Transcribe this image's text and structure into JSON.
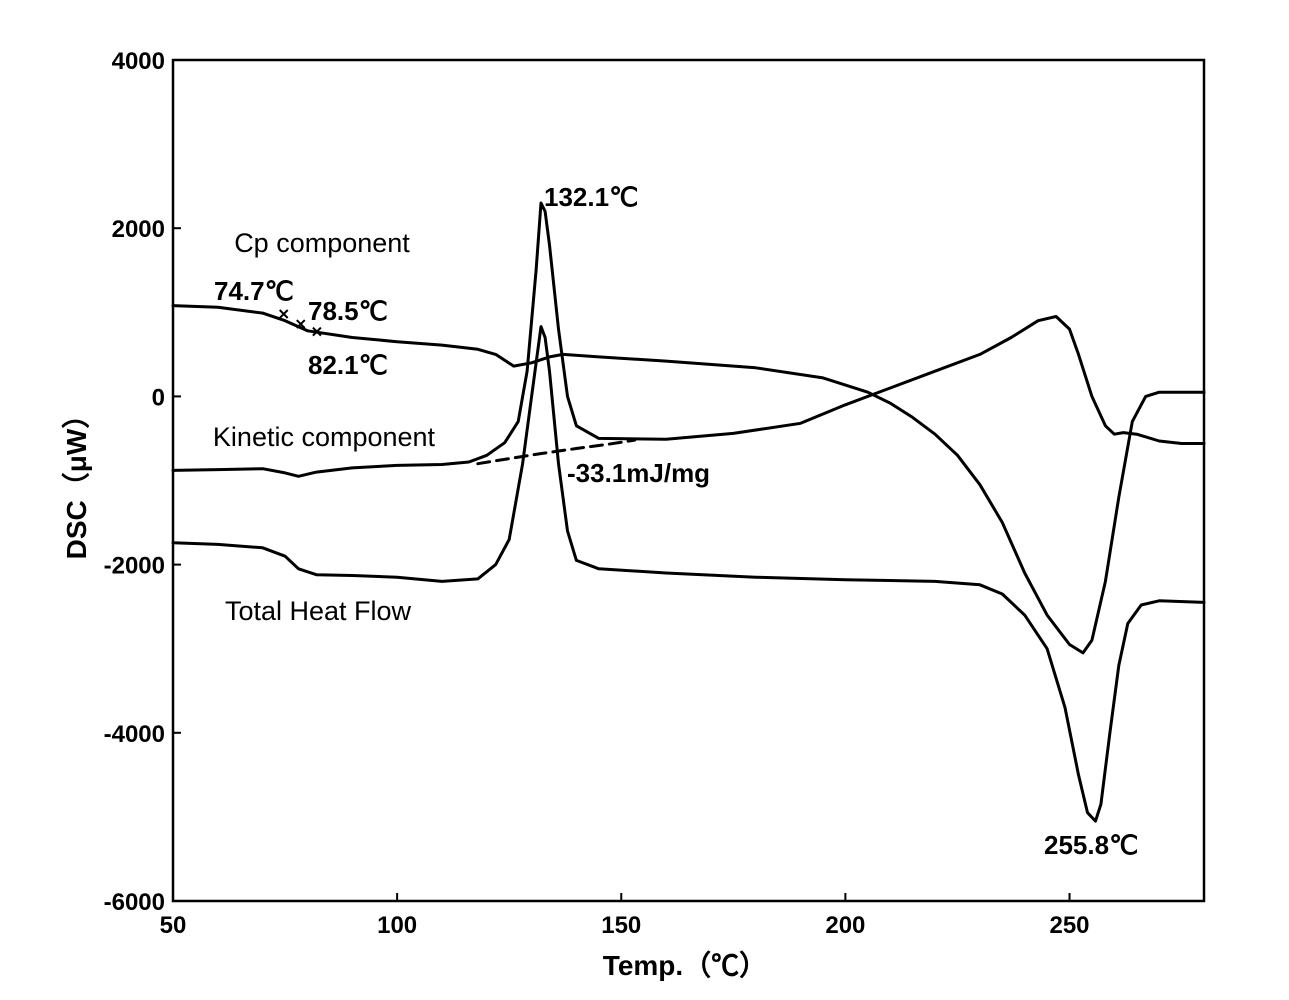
{
  "chart_data": {
    "type": "line",
    "title": "",
    "xlabel": "Temp.（℃）",
    "ylabel": "DSC（μW）",
    "xlim": [
      50,
      280
    ],
    "ylim": [
      -6000,
      4000
    ],
    "x_ticks": [
      50,
      100,
      150,
      200,
      250
    ],
    "x_tick_labels": [
      "50",
      "100",
      "150",
      "200",
      "250"
    ],
    "y_ticks": [
      4000,
      2000,
      0,
      -2000,
      -4000,
      -6000
    ],
    "y_tick_labels": [
      "4000",
      "2000",
      "0",
      "-2000",
      "-4000",
      "-6000"
    ],
    "grid": false,
    "legend": "none",
    "series": [
      {
        "name": "Cp component",
        "color": "#000000",
        "style": "solid",
        "points": [
          [
            50,
            1080
          ],
          [
            60,
            1060
          ],
          [
            70,
            990
          ],
          [
            75,
            900
          ],
          [
            80,
            780
          ],
          [
            90,
            700
          ],
          [
            100,
            650
          ],
          [
            110,
            610
          ],
          [
            118,
            560
          ],
          [
            122,
            500
          ],
          [
            126,
            360
          ],
          [
            130,
            400
          ],
          [
            134,
            470
          ],
          [
            137,
            500
          ],
          [
            145,
            470
          ],
          [
            160,
            420
          ],
          [
            180,
            340
          ],
          [
            195,
            220
          ],
          [
            205,
            50
          ],
          [
            210,
            -80
          ],
          [
            215,
            -250
          ],
          [
            220,
            -450
          ],
          [
            225,
            -700
          ],
          [
            230,
            -1050
          ],
          [
            235,
            -1500
          ],
          [
            240,
            -2100
          ],
          [
            245,
            -2600
          ],
          [
            250,
            -2950
          ],
          [
            253,
            -3050
          ],
          [
            255,
            -2900
          ],
          [
            258,
            -2200
          ],
          [
            261,
            -1200
          ],
          [
            264,
            -300
          ],
          [
            267,
            0
          ],
          [
            270,
            50
          ],
          [
            280,
            50
          ]
        ]
      },
      {
        "name": "Kinetic component",
        "color": "#000000",
        "style": "solid",
        "points": [
          [
            50,
            -880
          ],
          [
            60,
            -870
          ],
          [
            70,
            -860
          ],
          [
            75,
            -910
          ],
          [
            78,
            -950
          ],
          [
            82,
            -900
          ],
          [
            90,
            -850
          ],
          [
            100,
            -820
          ],
          [
            110,
            -810
          ],
          [
            116,
            -780
          ],
          [
            120,
            -700
          ],
          [
            124,
            -550
          ],
          [
            127,
            -300
          ],
          [
            129,
            300
          ],
          [
            131,
            1500
          ],
          [
            132.1,
            2300
          ],
          [
            133,
            2200
          ],
          [
            134,
            1800
          ],
          [
            136,
            800
          ],
          [
            138,
            0
          ],
          [
            140,
            -350
          ],
          [
            145,
            -500
          ],
          [
            160,
            -510
          ],
          [
            175,
            -440
          ],
          [
            190,
            -320
          ],
          [
            200,
            -100
          ],
          [
            210,
            100
          ],
          [
            220,
            300
          ],
          [
            230,
            500
          ],
          [
            237,
            700
          ],
          [
            243,
            900
          ],
          [
            247,
            950
          ],
          [
            250,
            800
          ],
          [
            252,
            500
          ],
          [
            255,
            0
          ],
          [
            258,
            -350
          ],
          [
            260,
            -450
          ],
          [
            262,
            -430
          ],
          [
            265,
            -450
          ],
          [
            270,
            -530
          ],
          [
            275,
            -560
          ],
          [
            280,
            -560
          ]
        ]
      },
      {
        "name": "Total Heat Flow",
        "color": "#000000",
        "style": "solid",
        "points": [
          [
            50,
            -1740
          ],
          [
            60,
            -1760
          ],
          [
            70,
            -1800
          ],
          [
            75,
            -1900
          ],
          [
            78,
            -2050
          ],
          [
            82,
            -2120
          ],
          [
            90,
            -2130
          ],
          [
            100,
            -2150
          ],
          [
            110,
            -2200
          ],
          [
            118,
            -2170
          ],
          [
            122,
            -2000
          ],
          [
            125,
            -1700
          ],
          [
            128,
            -800
          ],
          [
            130,
            0
          ],
          [
            132.1,
            830
          ],
          [
            133,
            700
          ],
          [
            134,
            300
          ],
          [
            136,
            -800
          ],
          [
            138,
            -1600
          ],
          [
            140,
            -1950
          ],
          [
            145,
            -2050
          ],
          [
            160,
            -2100
          ],
          [
            180,
            -2150
          ],
          [
            200,
            -2180
          ],
          [
            220,
            -2200
          ],
          [
            230,
            -2240
          ],
          [
            235,
            -2350
          ],
          [
            240,
            -2600
          ],
          [
            245,
            -3000
          ],
          [
            249,
            -3700
          ],
          [
            252,
            -4500
          ],
          [
            254,
            -4950
          ],
          [
            255.8,
            -5050
          ],
          [
            257,
            -4850
          ],
          [
            259,
            -4000
          ],
          [
            261,
            -3200
          ],
          [
            263,
            -2700
          ],
          [
            266,
            -2480
          ],
          [
            270,
            -2430
          ],
          [
            280,
            -2450
          ]
        ]
      },
      {
        "name": "",
        "color": "#000000",
        "style": "dashed",
        "points": [
          [
            118,
            -800
          ],
          [
            125,
            -740
          ],
          [
            132,
            -680
          ],
          [
            140,
            -620
          ],
          [
            147,
            -570
          ],
          [
            153,
            -520
          ]
        ]
      }
    ],
    "annotations": [
      {
        "text": "132.1℃",
        "x": 132.1,
        "y": 2300
      },
      {
        "text": "74.7℃",
        "x": 74.7,
        "y": 980
      },
      {
        "text": "78.5℃",
        "x": 78.5,
        "y": 860
      },
      {
        "text": "82.1℃",
        "x": 82.1,
        "y": 770
      },
      {
        "text": "-33.1mJ/mg",
        "x": 140,
        "y": -600
      },
      {
        "text": "255.8℃",
        "x": 255.8,
        "y": -5050
      }
    ]
  }
}
